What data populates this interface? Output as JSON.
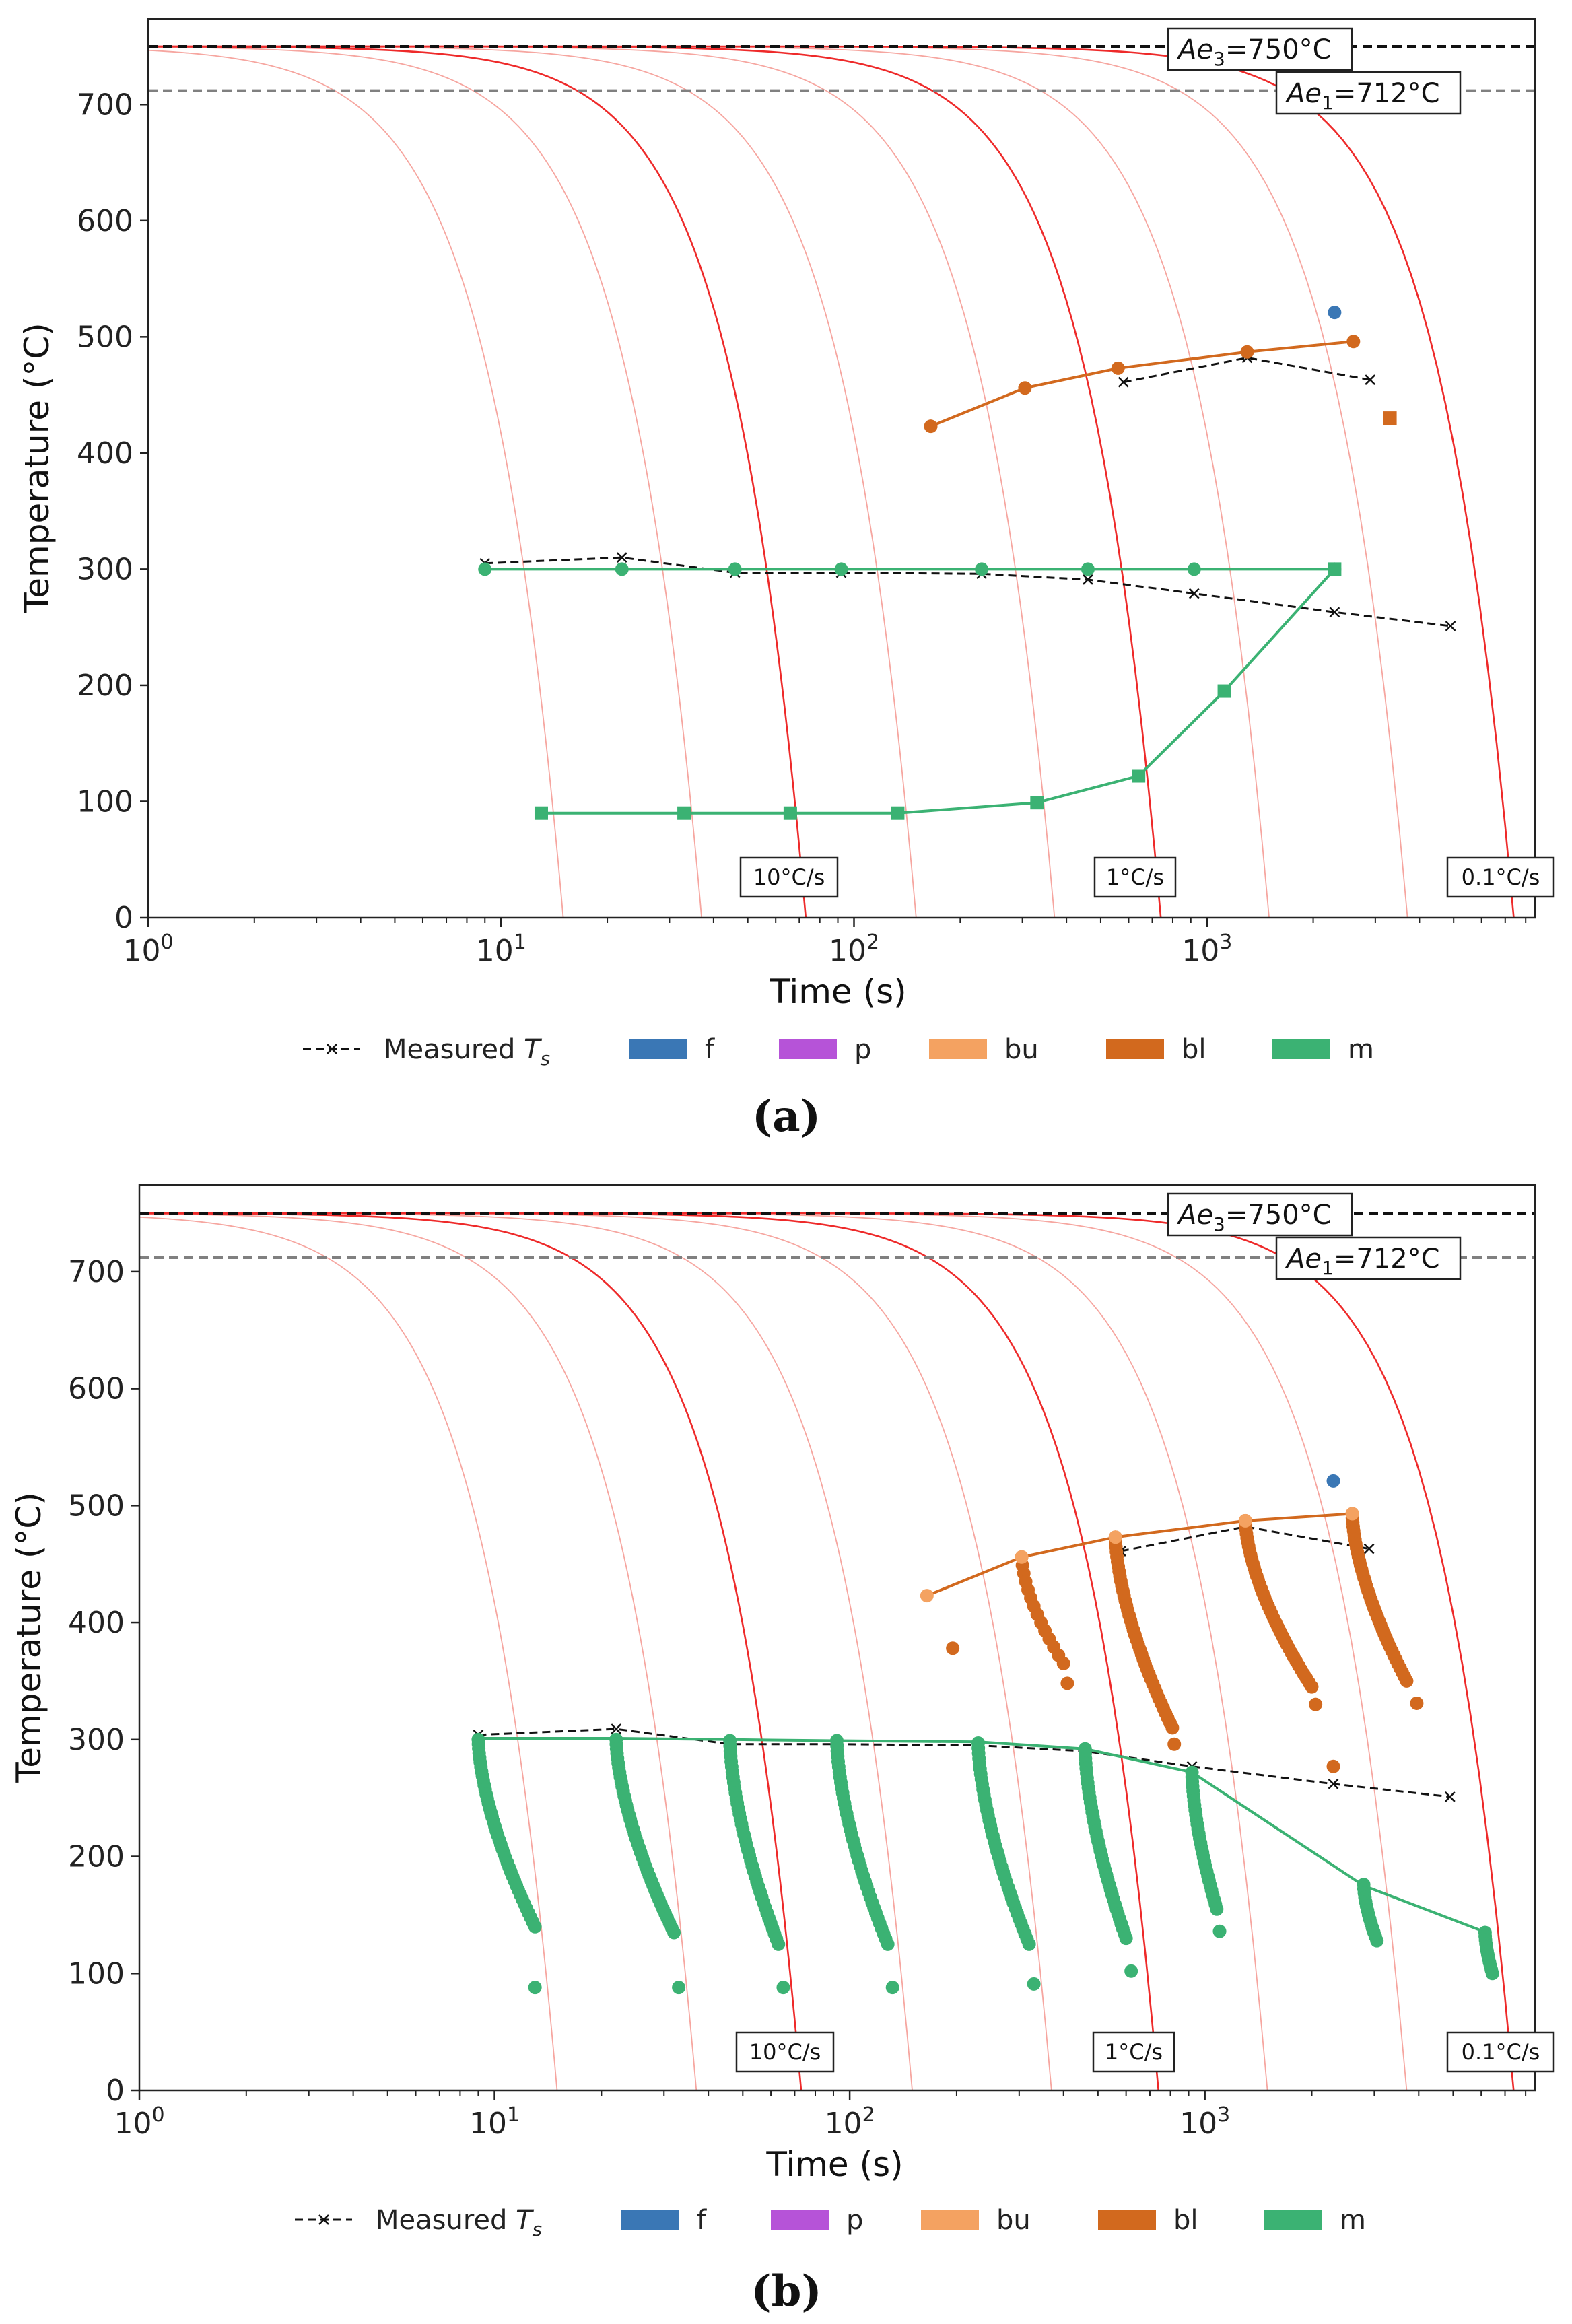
{
  "colors": {
    "cooling_strong": "#ee2a2a",
    "cooling_light": "#f6a6a0",
    "ae3": "#111111",
    "ae1": "#808080",
    "measured": "#111111",
    "f": "#3a77b5",
    "p": "#b653d8",
    "bu": "#f4a261",
    "bl": "#d2691e",
    "m": "#3bb273"
  },
  "chart_data": [
    {
      "panel": "a",
      "panel_label": "(a)",
      "type": "line",
      "xscale": "log",
      "xlim": [
        1,
        8500
      ],
      "ylim": [
        0,
        750
      ],
      "xlabel": "Time (s)",
      "ylabel": "Temperature (°C)",
      "xticks": [
        {
          "value": 1,
          "exp": "0"
        },
        {
          "value": 10,
          "exp": "1"
        },
        {
          "value": 100,
          "exp": "2"
        },
        {
          "value": 1000,
          "exp": "3"
        }
      ],
      "yticks": [
        0,
        100,
        200,
        300,
        400,
        500,
        600,
        700
      ],
      "hlines": [
        {
          "label_main": "Ae",
          "label_sub": "3",
          "label_rest": "=750°C",
          "value": 750,
          "style": "dashed",
          "color": "#111111"
        },
        {
          "label_main": "Ae",
          "label_sub": "1",
          "label_rest": "=712°C",
          "value": 712,
          "style": "dashed",
          "color": "#808080"
        }
      ],
      "cooling_rate_labels": [
        {
          "text": "10°C/s",
          "x": 64
        },
        {
          "text": "1°C/s",
          "x": 660
        },
        {
          "text": "0.1°C/s",
          "x": 7000
        }
      ],
      "cooling_curves": [
        {
          "t_end": 15,
          "strong": false
        },
        {
          "t_end": 37,
          "strong": false
        },
        {
          "t_end": 73,
          "strong": true
        },
        {
          "t_end": 150,
          "strong": false
        },
        {
          "t_end": 370,
          "strong": false
        },
        {
          "t_end": 740,
          "strong": true
        },
        {
          "t_end": 1500,
          "strong": false
        },
        {
          "t_end": 3700,
          "strong": false
        },
        {
          "t_end": 7400,
          "strong": true
        }
      ],
      "series": [
        {
          "name": "Measured Ts",
          "kind": "measured",
          "x": [
            9,
            22,
            46,
            92,
            230,
            460,
            920,
            2300,
            4900
          ],
          "y": [
            305,
            310,
            297,
            297,
            296,
            291,
            279,
            263,
            251
          ]
        },
        {
          "name": "Measured Ts (bainite)",
          "kind": "measured",
          "x": [
            580,
            1300,
            2900
          ],
          "y": [
            461,
            482,
            463
          ]
        },
        {
          "name": "bl start",
          "kind": "bl",
          "marker": "circle",
          "x": [
            165,
            305,
            560,
            1300,
            2600
          ],
          "y": [
            423,
            456,
            473,
            487,
            496
          ]
        },
        {
          "name": "m start",
          "kind": "m",
          "marker": "circle",
          "x": [
            9,
            22,
            46,
            92,
            230,
            460,
            920,
            2300
          ],
          "y": [
            300,
            300,
            300,
            300,
            300,
            300,
            300,
            300
          ]
        },
        {
          "name": "m finish",
          "kind": "m",
          "marker": "square",
          "x": [
            13,
            33,
            66,
            133,
            330,
            640,
            1120,
            2300
          ],
          "y": [
            90,
            90,
            90,
            90,
            99,
            122,
            195,
            300
          ]
        }
      ],
      "points": [
        {
          "kind": "f",
          "marker": "circle",
          "x": 2300,
          "y": 521
        },
        {
          "kind": "bl",
          "marker": "square",
          "x": 3300,
          "y": 430
        }
      ],
      "scatter_clusters": []
    },
    {
      "panel": "b",
      "panel_label": "(b)",
      "type": "line",
      "xscale": "log",
      "xlim": [
        1,
        8500
      ],
      "ylim": [
        0,
        750
      ],
      "xlabel": "Time (s)",
      "ylabel": "Temperature (°C)",
      "xticks": [
        {
          "value": 1,
          "exp": "0"
        },
        {
          "value": 10,
          "exp": "1"
        },
        {
          "value": 100,
          "exp": "2"
        },
        {
          "value": 1000,
          "exp": "3"
        }
      ],
      "yticks": [
        0,
        100,
        200,
        300,
        400,
        500,
        600,
        700
      ],
      "hlines": [
        {
          "label_main": "Ae",
          "label_sub": "3",
          "label_rest": "=750°C",
          "value": 750,
          "style": "dashed",
          "color": "#111111"
        },
        {
          "label_main": "Ae",
          "label_sub": "1",
          "label_rest": "=712°C",
          "value": 712,
          "style": "dashed",
          "color": "#808080"
        }
      ],
      "cooling_rate_labels": [
        {
          "text": "10°C/s",
          "x": 64
        },
        {
          "text": "1°C/s",
          "x": 660
        },
        {
          "text": "0.1°C/s",
          "x": 7000
        }
      ],
      "cooling_curves": [
        {
          "t_end": 15,
          "strong": false
        },
        {
          "t_end": 37,
          "strong": false
        },
        {
          "t_end": 73,
          "strong": true
        },
        {
          "t_end": 150,
          "strong": false
        },
        {
          "t_end": 370,
          "strong": false
        },
        {
          "t_end": 740,
          "strong": true
        },
        {
          "t_end": 1500,
          "strong": false
        },
        {
          "t_end": 3700,
          "strong": false
        },
        {
          "t_end": 7400,
          "strong": true
        }
      ],
      "series": [
        {
          "name": "Measured Ts",
          "kind": "measured",
          "x": [
            9,
            22,
            46,
            92,
            230,
            460,
            920,
            2300,
            4900
          ],
          "y": [
            304,
            309,
            296,
            296,
            295,
            290,
            277,
            262,
            251
          ]
        },
        {
          "name": "Measured Ts (bainite)",
          "kind": "measured",
          "x": [
            580,
            1300,
            2900
          ],
          "y": [
            461,
            482,
            463
          ]
        },
        {
          "name": "bu start",
          "kind": "bl",
          "marker": "none",
          "x": [
            165,
            305,
            560,
            1300,
            2600
          ],
          "y": [
            423,
            456,
            473,
            487,
            493
          ]
        },
        {
          "name": "m start",
          "kind": "m",
          "marker": "none",
          "x": [
            9,
            22,
            46,
            92,
            230,
            460,
            920,
            2800,
            6200
          ],
          "y": [
            301,
            301,
            300,
            299,
            298,
            292,
            272,
            175,
            135
          ]
        }
      ],
      "points": [
        {
          "kind": "f",
          "marker": "circle",
          "x": 2300,
          "y": 521
        },
        {
          "kind": "bu",
          "marker": "circle",
          "x": 165,
          "y": 423
        },
        {
          "kind": "bu",
          "marker": "circle",
          "x": 305,
          "y": 456
        },
        {
          "kind": "bu",
          "marker": "circle",
          "x": 560,
          "y": 473
        },
        {
          "kind": "bu",
          "marker": "circle",
          "x": 1300,
          "y": 487
        },
        {
          "kind": "bu",
          "marker": "circle",
          "x": 2600,
          "y": 493
        },
        {
          "kind": "bl",
          "marker": "circle",
          "x": 195,
          "y": 378
        },
        {
          "kind": "bl",
          "marker": "circle",
          "x": 2300,
          "y": 277
        }
      ],
      "scatter_clusters": [
        {
          "kind": "m",
          "x_start": 9,
          "x_end": 13,
          "y_top": 300,
          "y_bottom": 140,
          "tail": [
            [
              13,
              88
            ]
          ],
          "n": 42
        },
        {
          "kind": "m",
          "x_start": 22,
          "x_end": 32,
          "y_top": 300,
          "y_bottom": 135,
          "tail": [
            [
              33,
              88
            ]
          ],
          "n": 42
        },
        {
          "kind": "m",
          "x_start": 46,
          "x_end": 63,
          "y_top": 299,
          "y_bottom": 125,
          "tail": [
            [
              65,
              88
            ]
          ],
          "n": 40
        },
        {
          "kind": "m",
          "x_start": 92,
          "x_end": 128,
          "y_top": 299,
          "y_bottom": 125,
          "tail": [
            [
              132,
              88
            ]
          ],
          "n": 40
        },
        {
          "kind": "m",
          "x_start": 230,
          "x_end": 320,
          "y_top": 297,
          "y_bottom": 125,
          "tail": [
            [
              330,
              91
            ]
          ],
          "n": 40
        },
        {
          "kind": "m",
          "x_start": 460,
          "x_end": 600,
          "y_top": 292,
          "y_bottom": 130,
          "tail": [
            [
              620,
              102
            ]
          ],
          "n": 40
        },
        {
          "kind": "m",
          "x_start": 920,
          "x_end": 1080,
          "y_top": 272,
          "y_bottom": 155,
          "tail": [
            [
              1100,
              136
            ]
          ],
          "n": 30
        },
        {
          "kind": "m",
          "x_start": 2800,
          "x_end": 3050,
          "y_top": 176,
          "y_bottom": 128,
          "tail": [],
          "n": 14
        },
        {
          "kind": "m",
          "x_start": 6150,
          "x_end": 6450,
          "y_top": 135,
          "y_bottom": 100,
          "tail": [],
          "n": 12
        },
        {
          "kind": "bl",
          "x_start": 305,
          "x_end": 400,
          "y_top": 456,
          "y_bottom": 365,
          "tail": [
            [
              410,
              348
            ]
          ],
          "n": 14
        },
        {
          "kind": "bl",
          "x_start": 560,
          "x_end": 810,
          "y_top": 473,
          "y_bottom": 310,
          "tail": [
            [
              820,
              296
            ]
          ],
          "n": 40
        },
        {
          "kind": "bl",
          "x_start": 1300,
          "x_end": 2000,
          "y_top": 487,
          "y_bottom": 345,
          "tail": [
            [
              2050,
              330
            ]
          ],
          "n": 40
        },
        {
          "kind": "bl",
          "x_start": 2600,
          "x_end": 3700,
          "y_top": 493,
          "y_bottom": 350,
          "tail": [
            [
              3950,
              331
            ]
          ],
          "n": 40
        }
      ]
    }
  ],
  "legend": {
    "measured_main": "Measured ",
    "measured_sym": "T",
    "measured_sub": "s",
    "items": [
      {
        "key": "f",
        "label": "f"
      },
      {
        "key": "p",
        "label": "p"
      },
      {
        "key": "bu",
        "label": "bu"
      },
      {
        "key": "bl",
        "label": "bl"
      },
      {
        "key": "m",
        "label": "m"
      }
    ]
  }
}
